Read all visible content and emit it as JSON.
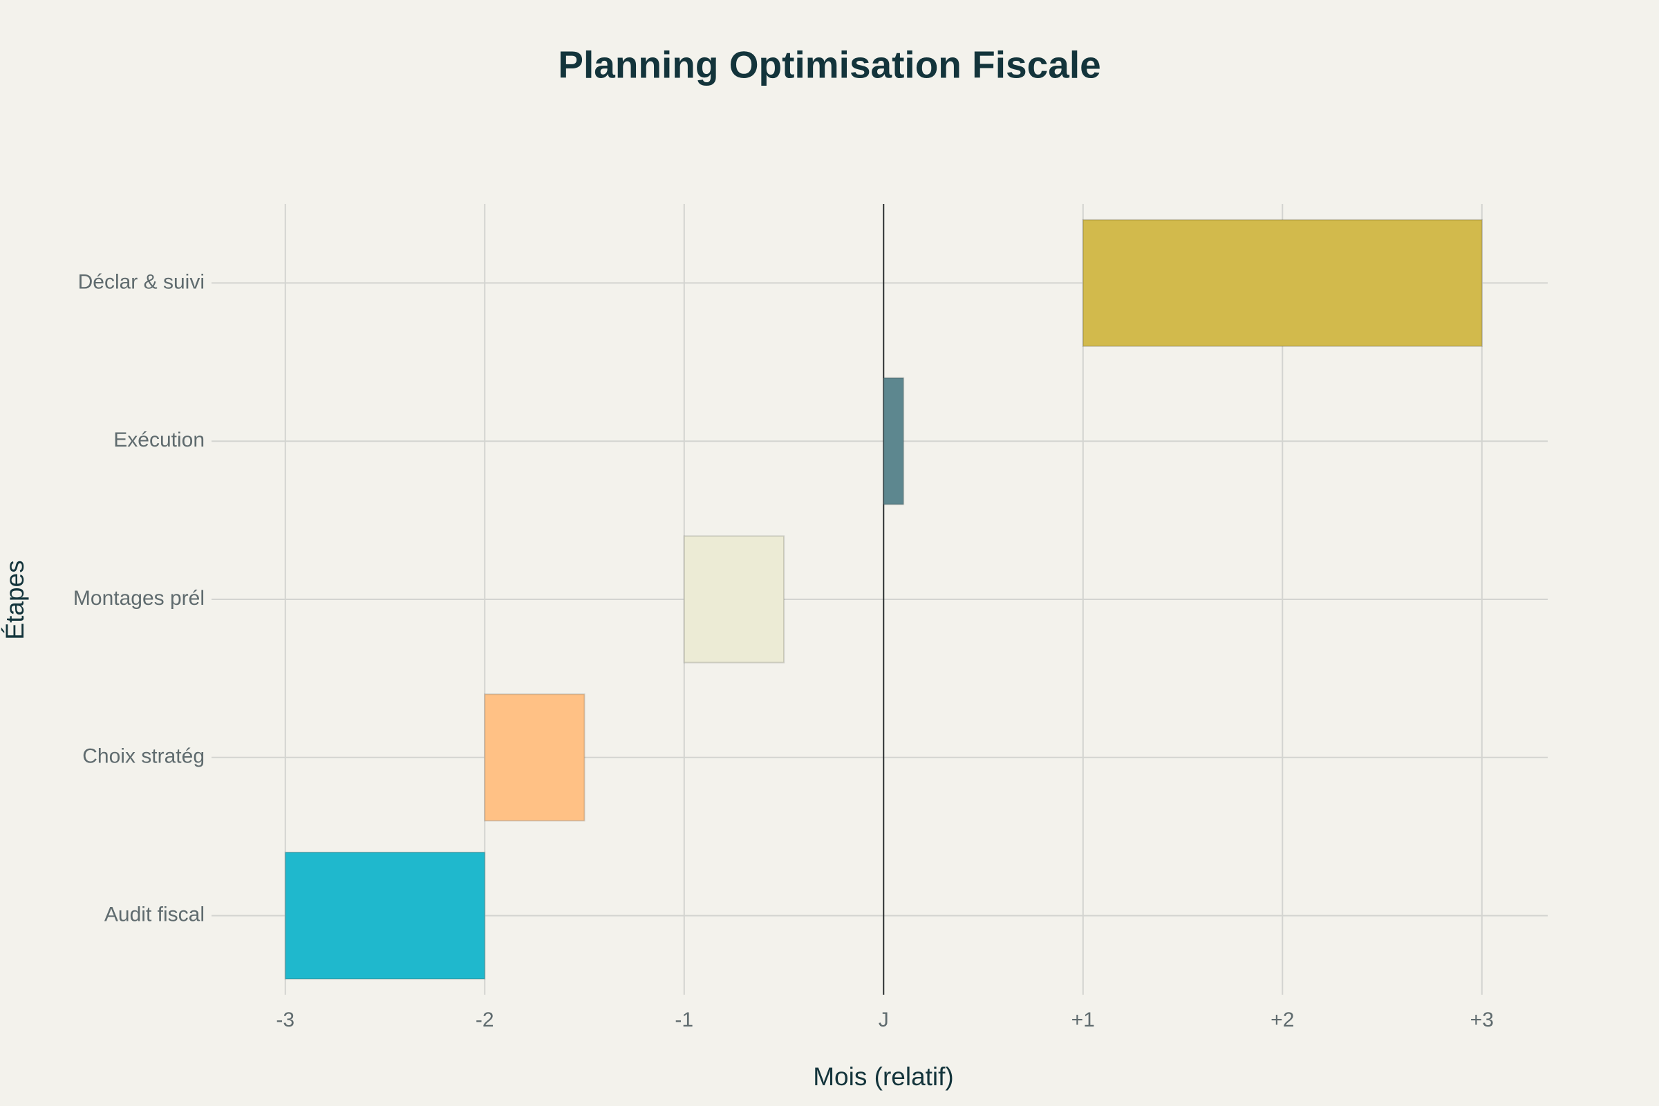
{
  "chart_data": {
    "type": "gantt",
    "title": "Planning Optimisation Fiscale",
    "x_label": "Mois (relatif)",
    "y_label": "Étapes",
    "categories": [
      "Audit fiscal",
      "Choix stratég",
      "Montages prél",
      "Exécution",
      "Déclar & suivi"
    ],
    "start": [
      -3,
      -2,
      -1,
      0,
      1
    ],
    "end": [
      -2,
      -1.5,
      -0.5,
      0.1,
      3
    ],
    "colors": [
      "#1FB8CD",
      "#FFC185",
      "#ECEBD5",
      "#5D878F",
      "#D2BA4C"
    ],
    "xlim": [
      -3.37,
      3.33
    ],
    "xticks": [
      -3,
      -2,
      -1,
      {
        "value": 0,
        "label": "J"
      },
      {
        "value": 1,
        "label": "+1"
      },
      {
        "value": 2,
        "label": "+2"
      },
      {
        "value": 3,
        "label": "+3"
      }
    ],
    "grid": true,
    "zeroline": true
  }
}
